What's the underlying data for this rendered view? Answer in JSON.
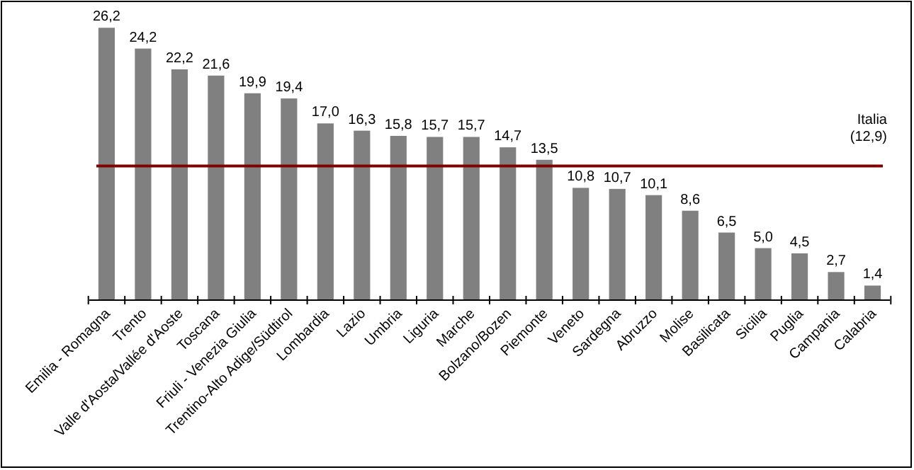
{
  "chart_data": {
    "type": "bar",
    "categories": [
      "Emilia - Romagna",
      "Trento",
      "Valle d'Aosta/Vallée d'Aoste",
      "Toscana",
      "Friuli - Venezia Giulia",
      "Trentino-Alto Adige/Südtirol",
      "Lombardia",
      "Lazio",
      "Umbria",
      "Liguria",
      "Marche",
      "Bolzano/Bozen",
      "Piemonte",
      "Veneto",
      "Sardegna",
      "Abruzzo",
      "Molise",
      "Basilicata",
      "Sicilia",
      "Puglia",
      "Campania",
      "Calabria"
    ],
    "values": [
      26.2,
      24.2,
      22.2,
      21.6,
      19.9,
      19.4,
      17.0,
      16.3,
      15.8,
      15.7,
      15.7,
      14.7,
      13.5,
      10.8,
      10.7,
      10.1,
      8.6,
      6.5,
      5.0,
      4.5,
      2.7,
      1.4
    ],
    "value_labels": [
      "26,2",
      "24,2",
      "22,2",
      "21,6",
      "19,9",
      "19,4",
      "17,0",
      "16,3",
      "15,8",
      "15,7",
      "15,7",
      "14,7",
      "13,5",
      "10,8",
      "10,7",
      "10,1",
      "8,6",
      "6,5",
      "5,0",
      "4,5",
      "2,7",
      "1,4"
    ],
    "color": "#808080",
    "tick_labels": "x",
    "ref_lines": [
      {
        "axis": "y",
        "value": 12.9,
        "label": "Italia (12,9)",
        "color": "#800000"
      }
    ]
  }
}
